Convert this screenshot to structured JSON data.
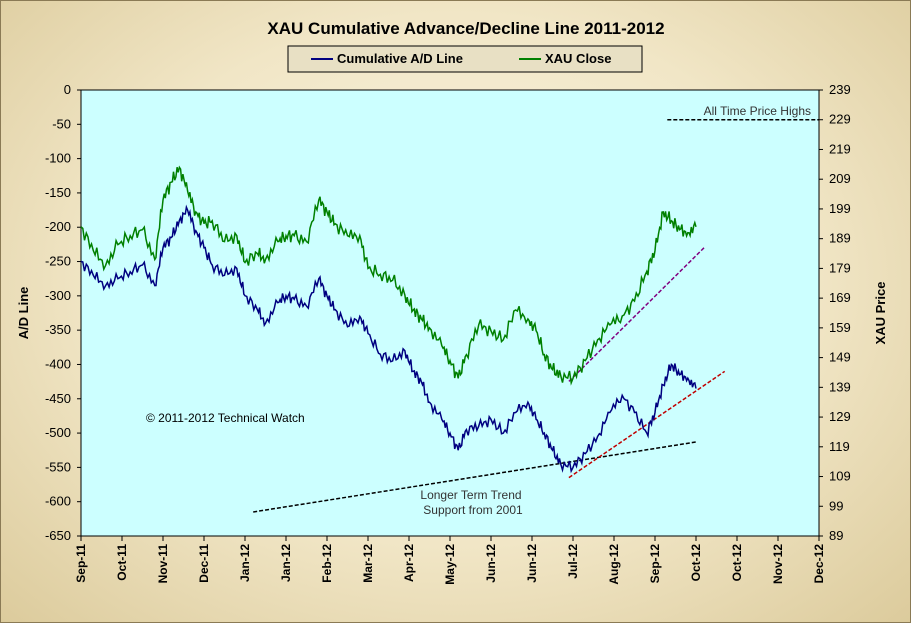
{
  "chart_data": {
    "type": "line",
    "title": "XAU Cumulative  Advance/Decline Line 2011-2012",
    "ylabel_left": "A/D Line",
    "ylabel_right": "XAU Price",
    "ylim_left": [
      -650,
      0
    ],
    "ylim_right": [
      89,
      239
    ],
    "yticks_left": [
      "0",
      "-50",
      "-100",
      "-150",
      "-200",
      "-250",
      "-300",
      "-350",
      "-400",
      "-450",
      "-500",
      "-550",
      "-600",
      "-650"
    ],
    "yticks_right": [
      "239",
      "229",
      "219",
      "209",
      "199",
      "189",
      "179",
      "169",
      "159",
      "149",
      "139",
      "129",
      "119",
      "109",
      "99",
      "89"
    ],
    "x_labels": [
      "Sep-11",
      "Oct-11",
      "Nov-11",
      "Dec-11",
      "Jan-12",
      "Jan-12",
      "Feb-12",
      "Mar-12",
      "Apr-12",
      "May-12",
      "Jun-12",
      "Jun-12",
      "Jul-12",
      "Aug-12",
      "Sep-12",
      "Oct-12",
      "Oct-12",
      "Nov-12",
      "Dec-12"
    ],
    "legend": {
      "position": "top-center",
      "entries": [
        "Cumulative A/D Line",
        "XAU Close"
      ]
    },
    "grid": false,
    "colors": {
      "ad_line": "#000080",
      "xau": "#008000",
      "plot_bg": "#ccffff"
    },
    "series": [
      {
        "name": "Cumulative A/D Line",
        "axis": "left",
        "x": [
          0,
          0.3,
          0.6,
          0.9,
          1.2,
          1.5,
          1.8,
          2.0,
          2.2,
          2.4,
          2.6,
          2.8,
          3.0,
          3.2,
          3.5,
          3.8,
          4.0,
          4.3,
          4.5,
          4.8,
          5.0,
          5.2,
          5.5,
          5.8,
          6.0,
          6.2,
          6.5,
          6.8,
          7.0,
          7.3,
          7.6,
          7.9,
          8.1,
          8.3,
          8.5,
          8.8,
          9.0,
          9.2,
          9.4,
          9.7,
          10.0,
          10.3,
          10.6,
          10.9,
          11.1,
          11.3,
          11.5,
          11.7,
          12.0,
          12.3,
          12.6,
          12.9,
          13.2,
          13.5,
          13.8,
          14.0,
          14.2,
          14.4,
          14.6,
          14.8,
          15.0
        ],
        "values": [
          -250,
          -270,
          -285,
          -275,
          -265,
          -255,
          -285,
          -230,
          -215,
          -190,
          -175,
          -205,
          -230,
          -255,
          -270,
          -260,
          -300,
          -320,
          -340,
          -310,
          -300,
          -305,
          -315,
          -275,
          -300,
          -320,
          -345,
          -330,
          -355,
          -385,
          -395,
          -380,
          -410,
          -425,
          -455,
          -480,
          -500,
          -525,
          -495,
          -490,
          -480,
          -500,
          -470,
          -455,
          -480,
          -500,
          -525,
          -545,
          -550,
          -530,
          -505,
          -470,
          -445,
          -470,
          -500,
          -470,
          -430,
          -400,
          -415,
          -420,
          -435
        ]
      },
      {
        "name": "XAU Close",
        "axis": "right",
        "x": [
          0,
          0.3,
          0.6,
          0.9,
          1.2,
          1.5,
          1.8,
          2.0,
          2.2,
          2.4,
          2.6,
          2.8,
          3.0,
          3.2,
          3.5,
          3.8,
          4.0,
          4.3,
          4.5,
          4.8,
          5.0,
          5.2,
          5.5,
          5.8,
          6.0,
          6.2,
          6.5,
          6.8,
          7.0,
          7.3,
          7.6,
          7.9,
          8.1,
          8.3,
          8.5,
          8.8,
          9.0,
          9.2,
          9.4,
          9.7,
          10.0,
          10.3,
          10.6,
          10.9,
          11.1,
          11.3,
          11.5,
          11.7,
          12.0,
          12.3,
          12.6,
          12.9,
          13.2,
          13.5,
          13.8,
          14.0,
          14.2,
          14.4,
          14.6,
          14.8,
          15.0
        ],
        "values": [
          193,
          185,
          180,
          187,
          190,
          192,
          182,
          202,
          208,
          213,
          205,
          198,
          194,
          195,
          188,
          190,
          181,
          184,
          182,
          188,
          190,
          190,
          188,
          202,
          198,
          194,
          190,
          190,
          179,
          177,
          175,
          170,
          165,
          162,
          159,
          153,
          148,
          142,
          150,
          160,
          158,
          155,
          165,
          162,
          158,
          150,
          145,
          143,
          142,
          148,
          155,
          160,
          163,
          168,
          178,
          185,
          198,
          195,
          192,
          191,
          193
        ]
      }
    ],
    "trendlines": [
      {
        "style": "dashed",
        "color": "#000000",
        "axis": "left",
        "x": [
          4.2,
          15.0
        ],
        "values": [
          -615,
          -513
        ]
      },
      {
        "style": "dashed",
        "color": "#c00000",
        "axis": "left",
        "x": [
          11.9,
          15.7
        ],
        "values": [
          -565,
          -410
        ]
      },
      {
        "style": "dashed",
        "color": "#800080",
        "axis": "right",
        "x": [
          11.9,
          15.2
        ],
        "values": [
          141,
          186
        ]
      },
      {
        "style": "dashed",
        "color": "#000000",
        "axis": "right",
        "x": [
          14.3,
          18.0
        ],
        "values": [
          229,
          229
        ]
      }
    ],
    "annotations": [
      "All Time Price Highs",
      "Longer Term Trend",
      "Support from 2001",
      "© 2011-2012  Technical Watch"
    ]
  }
}
